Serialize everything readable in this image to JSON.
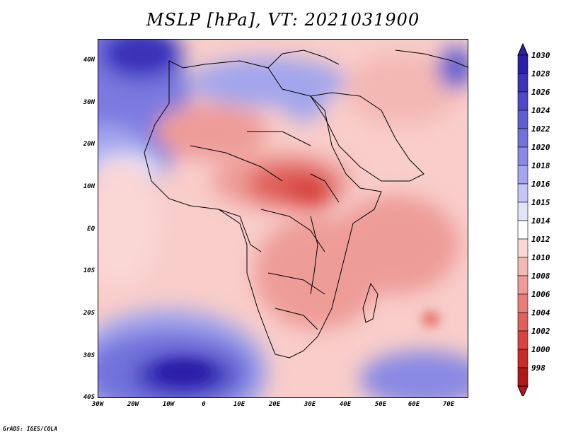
{
  "title": "MSLP [hPa], VT: 2021031900",
  "credit": "GrADS: IGES/COLA",
  "lat_labels": [
    "40N",
    "30N",
    "20N",
    "10N",
    "EQ",
    "10S",
    "20S",
    "30S",
    "40S"
  ],
  "lon_labels": [
    "30W",
    "20W",
    "10W",
    "0",
    "10E",
    "20E",
    "30E",
    "40E",
    "50E",
    "60E",
    "70E"
  ],
  "colorbar": {
    "levels": [
      "1030",
      "1028",
      "1026",
      "1024",
      "1022",
      "1020",
      "1018",
      "1016",
      "1015",
      "1014",
      "1012",
      "1010",
      "1008",
      "1006",
      "1004",
      "1002",
      "1000",
      "998"
    ],
    "colors": [
      "#2b1fa8",
      "#3b33b8",
      "#4d48c6",
      "#5f5ed2",
      "#7272dc",
      "#8a8ae4",
      "#a3a6ec",
      "#c4c6f4",
      "#e2e4fa",
      "#ffffff",
      "#fad6d4",
      "#f4b8b4",
      "#ee9c98",
      "#e87e7a",
      "#e0605c",
      "#d84440",
      "#c82c2a",
      "#b01818"
    ]
  },
  "chart_data": {
    "type": "heatmap",
    "title": "MSLP [hPa], VT: 2021031900",
    "variable": "Mean sea level pressure",
    "units": "hPa",
    "valid_time": "2021031900",
    "lon_range": [
      -30,
      75
    ],
    "lat_range": [
      -40,
      45
    ],
    "colorbar_range": [
      998,
      1030
    ],
    "features": [
      {
        "name": "Azores high (NW)",
        "approx_value": 1026
      },
      {
        "name": "Subtropical high SW of Africa",
        "approx_value": 1028
      },
      {
        "name": "High over SE Indian Ocean",
        "approx_value": 1022
      },
      {
        "name": "High over Mediterranean",
        "approx_value": 1020
      },
      {
        "name": "Low over Sudan",
        "approx_value": 1004
      },
      {
        "name": "Low near Mauritius",
        "approx_value": 1004
      }
    ]
  }
}
